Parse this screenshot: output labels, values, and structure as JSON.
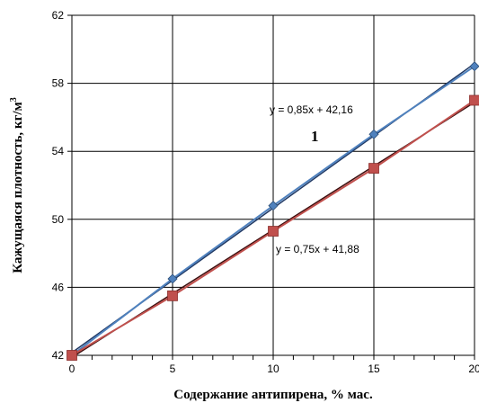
{
  "chart_data": {
    "type": "line",
    "title": "",
    "xlabel": "Содержание антипирена, % мас.",
    "ylabel_main": "Кажущаяся плотность,  кг/м",
    "ylabel_sup": "3",
    "xlim": [
      0,
      20
    ],
    "ylim": [
      42,
      62
    ],
    "x_ticks": [
      "0",
      "5",
      "10",
      "15",
      "20"
    ],
    "y_ticks": [
      "42",
      "46",
      "50",
      "54",
      "58",
      "62"
    ],
    "grid": true,
    "series": [
      {
        "color": "#4f81bd",
        "trend_color": "#1f3864",
        "marker": "diamond",
        "x": [
          0,
          5,
          10,
          15,
          20
        ],
        "y": [
          42,
          46.5,
          50.8,
          55,
          59
        ],
        "trendline": {
          "slope": 0.85,
          "intercept": 42.16,
          "equation": "y = 0,85x + 42,16"
        },
        "label": "1"
      },
      {
        "color": "#c0504d",
        "trend_color": "#3b0d0d",
        "marker": "square",
        "x": [
          0,
          5,
          10,
          15,
          20
        ],
        "y": [
          42,
          45.5,
          49.3,
          53,
          57
        ],
        "trendline": {
          "slope": 0.75,
          "intercept": 41.88,
          "equation": "y = 0,75x + 41,88"
        }
      }
    ]
  }
}
